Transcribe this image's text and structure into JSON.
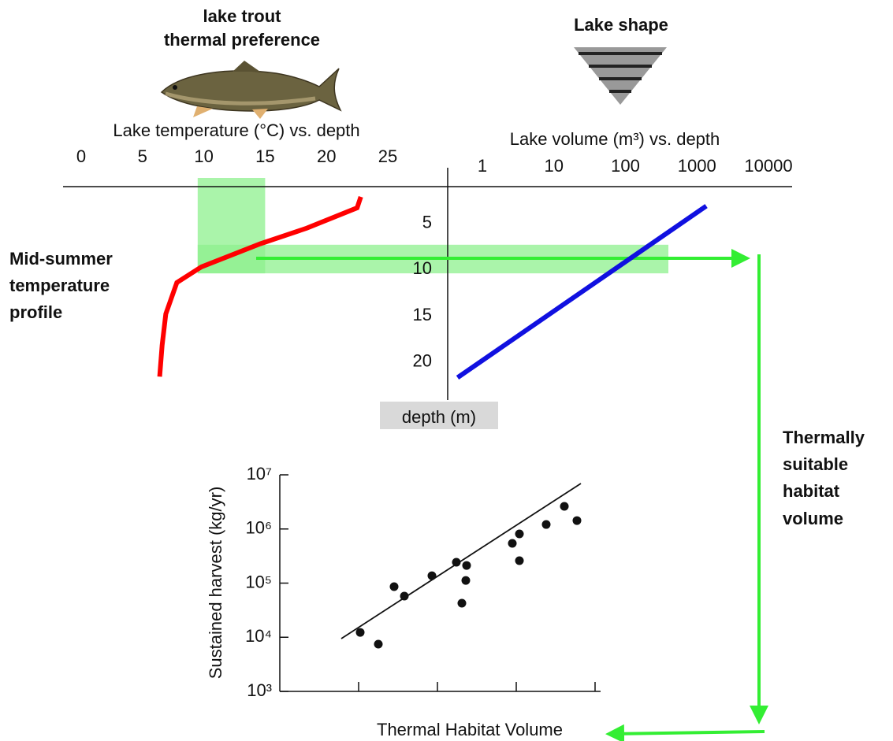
{
  "labels": {
    "fish": [
      "lake trout",
      "thermal preference"
    ],
    "lake_shape": "Lake shape",
    "profile": [
      "Mid-summer",
      "temperature",
      "profile"
    ],
    "habitat": [
      "Thermally",
      "suitable",
      "habitat",
      "volume"
    ]
  },
  "chart_data": [
    {
      "type": "line",
      "x_label": "Lake temperature (°C) vs. depth",
      "x": [
        22.8,
        22.5,
        18.4,
        14.6,
        9.8,
        7.8,
        6.9,
        6.6,
        6.4
      ],
      "values": [
        2.1,
        3.3,
        5.5,
        7.2,
        9.7,
        11.4,
        14.8,
        18.2,
        21.6
      ],
      "color": "#ff0000",
      "xlim": [
        0,
        25
      ],
      "xticks": [
        0,
        5,
        10,
        15,
        20,
        25
      ],
      "ylim": [
        1,
        22
      ],
      "band_temp": [
        9.5,
        15
      ],
      "band_depth": [
        7.3,
        10.4
      ],
      "band_color": "#8ef08e"
    },
    {
      "type": "line",
      "x_label": "Lake volume (m³) vs. depth",
      "y_label": "depth (m)",
      "log_x": true,
      "x": [
        0.45,
        1350
      ],
      "values": [
        21.7,
        3.1
      ],
      "color": "#1010e0",
      "xlim": [
        1,
        10000
      ],
      "xticks": [
        1,
        10,
        100,
        1000,
        10000
      ],
      "ylim": [
        1,
        22
      ],
      "yticks": [
        5,
        10,
        15,
        20
      ]
    },
    {
      "type": "scatter",
      "x_label": "Thermal Habitat Volume",
      "y_label": "Sustained harvest  (kg/yr)",
      "log_y": true,
      "x": [
        1.02,
        1.25,
        1.45,
        1.58,
        1.93,
        2.24,
        2.31,
        2.36,
        2.37,
        2.95,
        3.04,
        3.04,
        3.38,
        3.61,
        3.77
      ],
      "values": [
        12300,
        7470,
        86100,
        57500,
        137000,
        243000,
        42600,
        112000,
        212000,
        543000,
        811000,
        260000,
        1210000,
        2620000,
        1430000
      ],
      "color": "#111111",
      "trend": {
        "x": [
          0.78,
          3.82
        ],
        "values": [
          9440,
          6920000
        ]
      },
      "xlim": [
        0,
        4.07
      ],
      "xticks": [
        1,
        2,
        3,
        4
      ],
      "ylim": [
        1000,
        10000000
      ],
      "yticks": [
        {
          "value": 1000,
          "label": "10³"
        },
        {
          "value": 10000,
          "label": "10⁴"
        },
        {
          "value": 100000,
          "label": "10⁵"
        },
        {
          "value": 1000000,
          "label": "10⁶"
        },
        {
          "value": 10000000,
          "label": "10⁷"
        }
      ]
    }
  ]
}
